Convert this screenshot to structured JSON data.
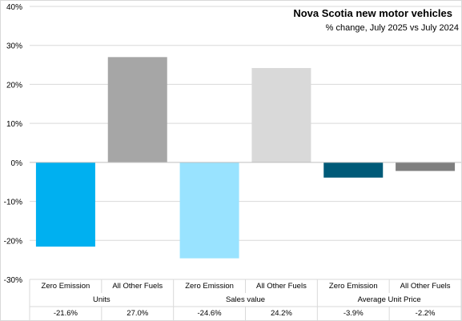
{
  "chart_data": {
    "type": "bar",
    "title": "Nova Scotia new motor vehicles",
    "subtitle": "% change, July 2025 vs July 2024",
    "xlabel": "",
    "ylabel": "",
    "ylim": [
      -30,
      40
    ],
    "yticks": [
      "40%",
      "30%",
      "20%",
      "10%",
      "0%",
      "-10%",
      "-20%",
      "-30%"
    ],
    "ytick_values": [
      40,
      30,
      20,
      10,
      0,
      -10,
      -20,
      -30
    ],
    "grid": true,
    "legend": "none",
    "groups": [
      {
        "label": "Units",
        "bars": [
          {
            "category": "Zero Emission",
            "value": -21.6,
            "label": "-21.6%",
            "color": "#00b0f0"
          },
          {
            "category": "All Other Fuels",
            "value": 27.0,
            "label": "27.0%",
            "color": "#a6a6a6"
          }
        ]
      },
      {
        "label": "Sales value",
        "bars": [
          {
            "category": "Zero Emission",
            "value": -24.6,
            "label": "-24.6%",
            "color": "#99e3ff"
          },
          {
            "category": "All Other Fuels",
            "value": 24.2,
            "label": "24.2%",
            "color": "#d9d9d9"
          }
        ]
      },
      {
        "label": "Average Unit Price",
        "bars": [
          {
            "category": "Zero Emission",
            "value": -3.9,
            "label": "-3.9%",
            "color": "#005a78"
          },
          {
            "category": "All Other Fuels",
            "value": -2.2,
            "label": "-2.2%",
            "color": "#7f7f7f"
          }
        ]
      }
    ],
    "gridline_color": "#d9d9d9",
    "axis_color": "#bfbfbf"
  }
}
